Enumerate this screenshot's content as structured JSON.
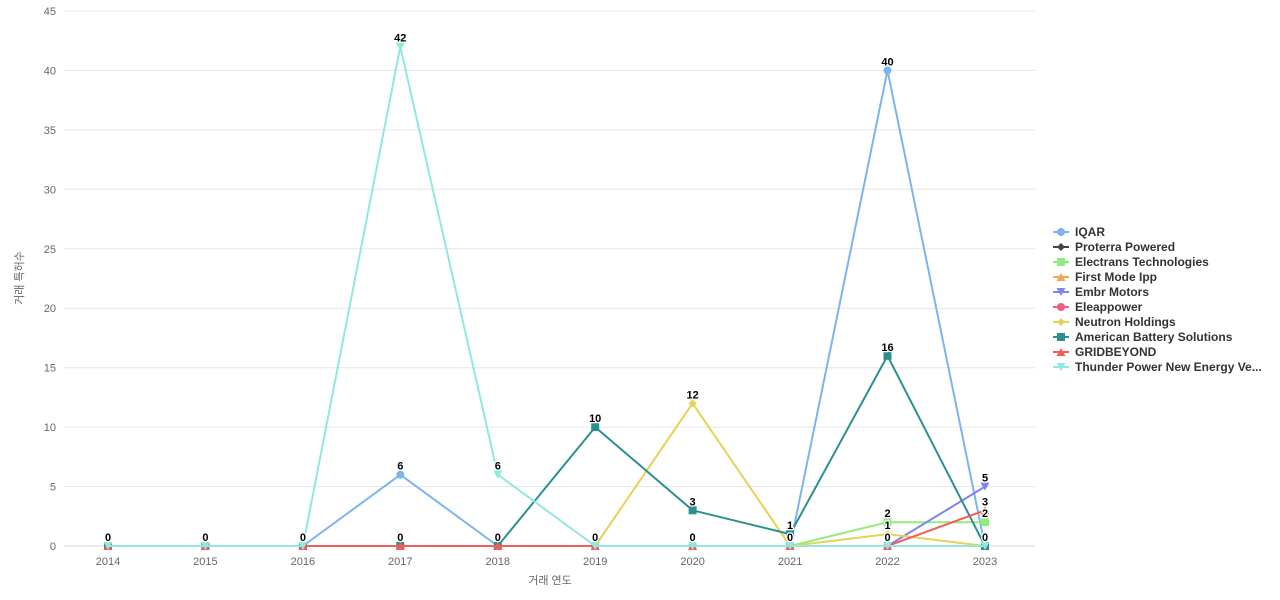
{
  "chart_data": {
    "type": "line",
    "title": "",
    "xlabel": "거래 연도",
    "ylabel": "거래 특허수",
    "categories": [
      "2014",
      "2015",
      "2016",
      "2017",
      "2018",
      "2019",
      "2020",
      "2021",
      "2022",
      "2023"
    ],
    "ylim": [
      0,
      45
    ],
    "y_ticks": [
      0,
      5,
      10,
      15,
      20,
      25,
      30,
      35,
      40,
      45
    ],
    "grid": true,
    "legend_position": "right",
    "series": [
      {
        "name": "IQAR",
        "color": "#7cb5ec",
        "marker": "circle",
        "values": [
          0,
          0,
          0,
          6,
          0,
          0,
          0,
          0,
          40,
          0
        ]
      },
      {
        "name": "Proterra Powered",
        "color": "#434348",
        "marker": "diamond",
        "values": [
          0,
          0,
          0,
          0,
          0,
          0,
          0,
          0,
          0,
          0
        ]
      },
      {
        "name": "Electrans Technologies",
        "color": "#90ed7d",
        "marker": "square",
        "values": [
          null,
          null,
          null,
          null,
          null,
          null,
          null,
          0,
          2,
          2
        ]
      },
      {
        "name": "First Mode Ipp",
        "color": "#f7a35c",
        "marker": "triangle",
        "values": [
          0,
          0,
          0,
          0,
          0,
          0,
          0,
          0,
          0,
          0
        ]
      },
      {
        "name": "Embr Motors",
        "color": "#8085e9",
        "marker": "triangle-down",
        "values": [
          null,
          null,
          null,
          null,
          null,
          null,
          null,
          null,
          0,
          5
        ]
      },
      {
        "name": "Eleappower",
        "color": "#f15c80",
        "marker": "circle",
        "values": [
          0,
          0,
          0,
          0,
          0,
          0,
          0,
          0,
          0,
          0
        ]
      },
      {
        "name": "Neutron Holdings",
        "color": "#e4d354",
        "marker": "diamond",
        "values": [
          null,
          null,
          null,
          null,
          null,
          0,
          12,
          0,
          1,
          0
        ]
      },
      {
        "name": "American Battery Solutions",
        "color": "#2b908f",
        "marker": "square",
        "values": [
          0,
          0,
          0,
          0,
          0,
          10,
          3,
          1,
          16,
          0
        ]
      },
      {
        "name": "GRIDBEYOND",
        "color": "#f45b5b",
        "marker": "triangle",
        "values": [
          0,
          0,
          0,
          0,
          0,
          0,
          0,
          0,
          0,
          3
        ]
      },
      {
        "name": "Thunder Power New Energy Ve...",
        "color": "#91e8e1",
        "marker": "triangle-down",
        "values": [
          0,
          0,
          0,
          42,
          6,
          0,
          0,
          0,
          0,
          0
        ]
      }
    ],
    "colors": {
      "grid": "#e6e6e6",
      "axis_line": "#ccd6eb",
      "tick_label": "#666666",
      "data_label": "#000000",
      "legend_text": "#333333",
      "background": "#ffffff"
    }
  }
}
